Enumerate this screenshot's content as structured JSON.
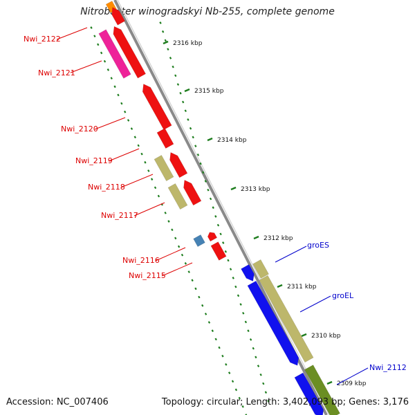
{
  "header": {
    "title": "Nitrobacter winogradskyi Nb-255, complete genome"
  },
  "footer": {
    "accession": "Accession: NC_007406",
    "topology": "Topology: circular; Length: 3,402,093 bp; Genes: 3,176"
  },
  "colors": {
    "backbone": "#8a8a8a",
    "tick": "#1e7d1e",
    "red": "#ee1111",
    "pink": "#ee2299",
    "khaki": "#bdb76b",
    "blue": "#1111ee",
    "steelblue": "#4682b4",
    "olive": "#6b8e23",
    "orange": "#ff8c00",
    "label_red": "#dd0000",
    "label_blue": "#0000cc"
  },
  "genes_left": [
    {
      "label": "Nwi_2122"
    },
    {
      "label": "Nwi_2121"
    },
    {
      "label": "Nwi_2120"
    },
    {
      "label": "Nwi_2119"
    },
    {
      "label": "Nwi_2118"
    },
    {
      "label": "Nwi_2117"
    },
    {
      "label": "Nwi_2116"
    },
    {
      "label": "Nwi_2115"
    }
  ],
  "genes_right": [
    {
      "label": "groES"
    },
    {
      "label": "groEL"
    },
    {
      "label": "Nwi_2112"
    }
  ],
  "kbp_ticks": [
    "2316 kbp",
    "2315 kbp",
    "2314 kbp",
    "2313 kbp",
    "2312 kbp",
    "2311 kbp",
    "2310 kbp",
    "2309 kbp"
  ]
}
